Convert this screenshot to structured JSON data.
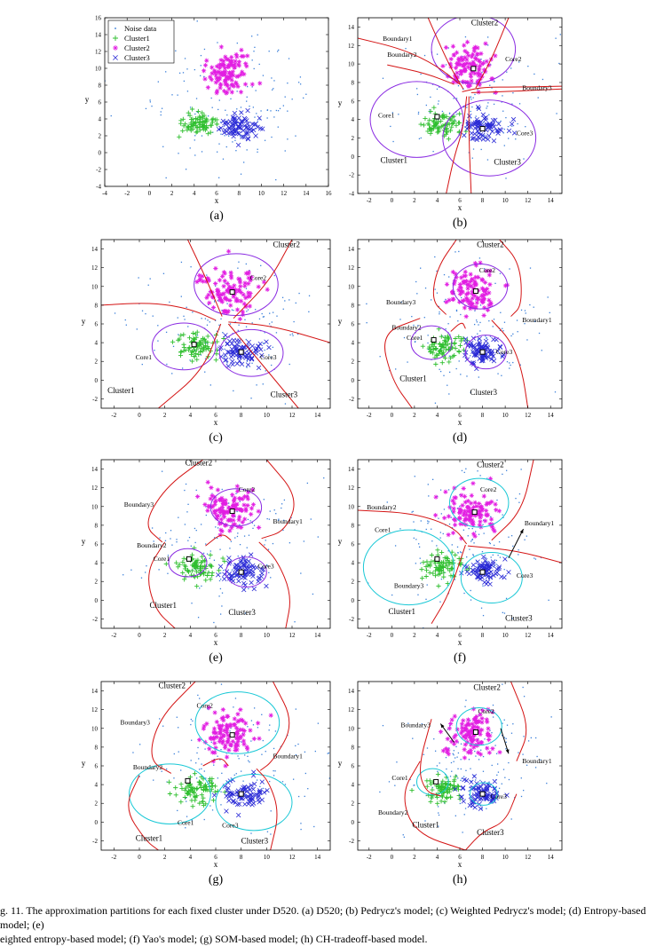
{
  "figure": {
    "subfigure_labels": [
      "(a)",
      "(b)",
      "(c)",
      "(d)",
      "(e)",
      "(f)",
      "(g)",
      "(h)"
    ],
    "caption_line1": "g. 11. The approximation partitions for each fixed cluster under D520. (a) D520; (b) Pedrycz's model; (c) Weighted Pedrycz's model; (d) Entropy-based model; (e)",
    "caption_line2": "eighted entropy-based model; (f) Yao's model; (g) SOM-based model; (h) CH-tradeoff-based model."
  },
  "colors": {
    "noise": "#3a7fd9",
    "cluster1": "#2fbf2f",
    "cluster2": "#e21ee2",
    "cluster3": "#2a2ad6",
    "boundary": "#d41414",
    "core_purple": "#8a2be2",
    "core_cyan": "#19c8d6"
  },
  "chart_data": [
    {
      "type": "scatter",
      "panel": "a",
      "xlabel": "x",
      "ylabel": "y",
      "xlim": [
        -4,
        16
      ],
      "ylim": [
        -4,
        16
      ],
      "xticks": [
        "-4",
        "-2",
        "0",
        "2",
        "4",
        "6",
        "8",
        "10",
        "12",
        "14",
        "16"
      ],
      "yticks": [
        "-4",
        "-2",
        "0",
        "2",
        "4",
        "6",
        "8",
        "10",
        "12",
        "14",
        "16"
      ],
      "legend": [
        "Noise data",
        "Cluster1",
        "Cluster2",
        "Cluster3"
      ],
      "legend_position": "top-left",
      "series": [
        {
          "name": "Cluster1",
          "center": [
            4.5,
            3.5
          ]
        },
        {
          "name": "Cluster2",
          "center": [
            7.0,
            9.5
          ]
        },
        {
          "name": "Cluster3",
          "center": [
            8.0,
            3.0
          ]
        }
      ],
      "annotations": []
    },
    {
      "type": "scatter",
      "panel": "b",
      "xlabel": "x",
      "ylabel": "y",
      "xlim": [
        -3,
        15
      ],
      "ylim": [
        -4,
        15
      ],
      "xticks": [
        "-2",
        "0",
        "2",
        "4",
        "6",
        "8",
        "10",
        "12",
        "14"
      ],
      "yticks": [
        "-4",
        "-2",
        "0",
        "2",
        "4",
        "6",
        "8",
        "10",
        "12",
        "14"
      ],
      "series": [
        {
          "name": "Cluster1",
          "center": [
            4.5,
            3.5
          ]
        },
        {
          "name": "Cluster2",
          "center": [
            7.0,
            9.5
          ]
        },
        {
          "name": "Cluster3",
          "center": [
            8.0,
            3.0
          ]
        }
      ],
      "centroids": [
        [
          4,
          4.3
        ],
        [
          7.2,
          9.5
        ],
        [
          8,
          3
        ]
      ],
      "cores": [
        {
          "cx": 2.2,
          "cy": 4.0,
          "r": 4.1,
          "color": "purple"
        },
        {
          "cx": 7.2,
          "cy": 11.6,
          "r": 3.7,
          "color": "purple"
        },
        {
          "cx": 8.6,
          "cy": 2.0,
          "r": 4.1,
          "color": "purple"
        }
      ],
      "annotations": [
        "Cluster2",
        "Boundary1",
        "Boundary2",
        "Core2",
        "Boundary3",
        "Core1",
        "Core3",
        "Cluster1",
        "Cluster3"
      ]
    },
    {
      "type": "scatter",
      "panel": "c",
      "xlabel": "x",
      "ylabel": "y",
      "xlim": [
        -3,
        15
      ],
      "ylim": [
        -3,
        15
      ],
      "xticks": [
        "-2",
        "0",
        "2",
        "4",
        "6",
        "8",
        "10",
        "12",
        "14"
      ],
      "yticks": [
        "-2",
        "0",
        "2",
        "4",
        "6",
        "8",
        "10",
        "12",
        "14"
      ],
      "series": [
        {
          "name": "Cluster1",
          "center": [
            4.5,
            3.5
          ]
        },
        {
          "name": "Cluster2",
          "center": [
            7.0,
            9.5
          ]
        },
        {
          "name": "Cluster3",
          "center": [
            8.0,
            3.0
          ]
        }
      ],
      "centroids": [
        [
          4.3,
          3.8
        ],
        [
          7.3,
          9.4
        ],
        [
          8,
          3
        ]
      ],
      "cores": [
        {
          "cx": 3.5,
          "cy": 3.6,
          "r": 2.5,
          "color": "purple"
        },
        {
          "cx": 7.6,
          "cy": 10.2,
          "r": 3.3,
          "color": "purple"
        },
        {
          "cx": 8.8,
          "cy": 2.9,
          "r": 2.5,
          "color": "purple"
        }
      ],
      "annotations": [
        "Cluster2",
        "Core2",
        "Core1",
        "Core3",
        "Cluster1",
        "Cluster3"
      ]
    },
    {
      "type": "scatter",
      "panel": "d",
      "xlabel": "x",
      "ylabel": "y",
      "xlim": [
        -3,
        15
      ],
      "ylim": [
        -3,
        15
      ],
      "xticks": [
        "-2",
        "0",
        "2",
        "4",
        "6",
        "8",
        "10",
        "12",
        "14"
      ],
      "yticks": [
        "-2",
        "0",
        "2",
        "4",
        "6",
        "8",
        "10",
        "12",
        "14"
      ],
      "series": [
        {
          "name": "Cluster1",
          "center": [
            4.5,
            3.5
          ]
        },
        {
          "name": "Cluster2",
          "center": [
            7.0,
            9.5
          ]
        },
        {
          "name": "Cluster3",
          "center": [
            8.0,
            3.0
          ]
        }
      ],
      "centroids": [
        [
          3.7,
          4.3
        ],
        [
          7.4,
          9.5
        ],
        [
          8,
          3
        ]
      ],
      "cores": [
        {
          "cx": 3.5,
          "cy": 4.0,
          "r": 1.8,
          "color": "purple"
        },
        {
          "cx": 7.8,
          "cy": 10.0,
          "r": 2.4,
          "color": "purple"
        },
        {
          "cx": 8.3,
          "cy": 3.0,
          "r": 1.8,
          "color": "purple"
        }
      ],
      "annotations": [
        "Cluster2",
        "Core2",
        "Boundary3",
        "Boundary1",
        "Boundary2",
        "Core1",
        "Core3",
        "Cluster1",
        "Cluster3"
      ]
    },
    {
      "type": "scatter",
      "panel": "e",
      "xlabel": "x",
      "ylabel": "y",
      "xlim": [
        -3,
        15
      ],
      "ylim": [
        -3,
        15
      ],
      "xticks": [
        "-2",
        "0",
        "2",
        "4",
        "6",
        "8",
        "10",
        "12",
        "14"
      ],
      "yticks": [
        "-2",
        "0",
        "2",
        "4",
        "6",
        "8",
        "10",
        "12",
        "14"
      ],
      "series": [
        {
          "name": "Cluster1",
          "center": [
            4.5,
            3.5
          ]
        },
        {
          "name": "Cluster2",
          "center": [
            7.0,
            9.5
          ]
        },
        {
          "name": "Cluster3",
          "center": [
            8.0,
            3.0
          ]
        }
      ],
      "centroids": [
        [
          3.9,
          4.4
        ],
        [
          7.3,
          9.5
        ],
        [
          8,
          3
        ]
      ],
      "cores": [
        {
          "cx": 3.8,
          "cy": 4.0,
          "r": 1.5,
          "color": "purple"
        },
        {
          "cx": 7.6,
          "cy": 9.9,
          "r": 2.0,
          "color": "purple"
        },
        {
          "cx": 8.4,
          "cy": 3.0,
          "r": 1.6,
          "color": "purple"
        }
      ],
      "annotations": [
        "Cluster2",
        "Core2",
        "Boundary3",
        "Boundary1",
        "Boundary2",
        "Core1",
        "Core3",
        "Cluster1",
        "Cluster3"
      ]
    },
    {
      "type": "scatter",
      "panel": "f",
      "xlabel": "x",
      "ylabel": "y",
      "xlim": [
        -3,
        15
      ],
      "ylim": [
        -3,
        15
      ],
      "xticks": [
        "-2",
        "0",
        "2",
        "4",
        "6",
        "8",
        "10",
        "12",
        "14"
      ],
      "yticks": [
        "-2",
        "0",
        "2",
        "4",
        "6",
        "8",
        "10",
        "12",
        "14"
      ],
      "series": [
        {
          "name": "Cluster1",
          "center": [
            4.5,
            3.5
          ]
        },
        {
          "name": "Cluster2",
          "center": [
            7.0,
            9.5
          ]
        },
        {
          "name": "Cluster3",
          "center": [
            8.0,
            3.0
          ]
        }
      ],
      "centroids": [
        [
          4.0,
          4.4
        ],
        [
          7.3,
          9.4
        ],
        [
          8,
          3
        ]
      ],
      "cores": [
        {
          "cx": 1.5,
          "cy": 3.5,
          "r": 4.0,
          "color": "cyan"
        },
        {
          "cx": 7.7,
          "cy": 10.4,
          "r": 2.6,
          "color": "cyan"
        },
        {
          "cx": 8.8,
          "cy": 2.4,
          "r": 2.7,
          "color": "cyan"
        }
      ],
      "annotations": [
        "Cluster2",
        "Core2",
        "Boundary2",
        "Boundary1",
        "Core1",
        "Core3",
        "Boundary3",
        "Cluster1",
        "Cluster3"
      ]
    },
    {
      "type": "scatter",
      "panel": "g",
      "xlabel": "x",
      "ylabel": "y",
      "xlim": [
        -3,
        15
      ],
      "ylim": [
        -3,
        15
      ],
      "xticks": [
        "-2",
        "0",
        "2",
        "4",
        "6",
        "8",
        "10",
        "12",
        "14"
      ],
      "yticks": [
        "-2",
        "0",
        "2",
        "4",
        "6",
        "8",
        "10",
        "12",
        "14"
      ],
      "series": [
        {
          "name": "Cluster1",
          "center": [
            4.5,
            3.5
          ]
        },
        {
          "name": "Cluster2",
          "center": [
            7.0,
            9.5
          ]
        },
        {
          "name": "Cluster3",
          "center": [
            8.0,
            3.0
          ]
        }
      ],
      "centroids": [
        [
          3.8,
          4.4
        ],
        [
          7.3,
          9.3
        ],
        [
          8,
          3
        ]
      ],
      "cores": [
        {
          "cx": 2.4,
          "cy": 3.0,
          "r": 3.2,
          "color": "cyan"
        },
        {
          "cx": 7.7,
          "cy": 10.6,
          "r": 3.3,
          "color": "cyan"
        },
        {
          "cx": 9.0,
          "cy": 2.1,
          "r": 3.0,
          "color": "cyan"
        }
      ],
      "annotations": [
        "Cluster2",
        "Core2",
        "Boundary3",
        "Boundary1",
        "Boundary2",
        "Core1",
        "Core3",
        "Cluster1",
        "Cluster3"
      ]
    },
    {
      "type": "scatter",
      "panel": "h",
      "xlabel": "x",
      "ylabel": "y",
      "xlim": [
        -3,
        15
      ],
      "ylim": [
        -3,
        15
      ],
      "xticks": [
        "-2",
        "0",
        "2",
        "4",
        "6",
        "8",
        "10",
        "12",
        "14"
      ],
      "yticks": [
        "-2",
        "0",
        "2",
        "4",
        "6",
        "8",
        "10",
        "12",
        "14"
      ],
      "series": [
        {
          "name": "Cluster1",
          "center": [
            4.5,
            3.5
          ]
        },
        {
          "name": "Cluster2",
          "center": [
            7.0,
            9.5
          ]
        },
        {
          "name": "Cluster3",
          "center": [
            8.0,
            3.0
          ]
        }
      ],
      "centroids": [
        [
          3.9,
          4.3
        ],
        [
          7.4,
          9.6
        ],
        [
          8,
          3
        ]
      ],
      "cores": [
        {
          "cx": 3.6,
          "cy": 4.3,
          "r": 1.4,
          "color": "cyan"
        },
        {
          "cx": 7.7,
          "cy": 10.2,
          "r": 2.0,
          "color": "cyan"
        },
        {
          "cx": 8.1,
          "cy": 3.0,
          "r": 1.2,
          "color": "cyan"
        }
      ],
      "annotations": [
        "Cluster2",
        "Core2",
        "Boundary3",
        "Boundary1",
        "Core1",
        "Core3",
        "Boundary2",
        "Cluster1",
        "Cluster3"
      ]
    }
  ]
}
